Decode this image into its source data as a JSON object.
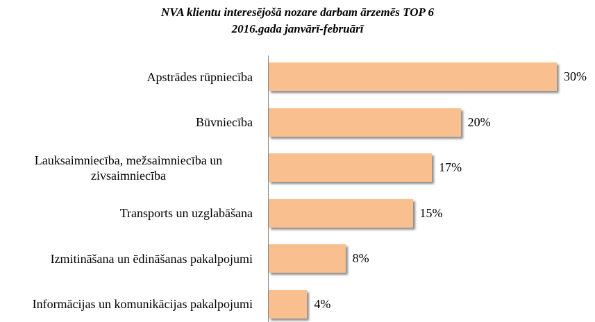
{
  "chart_data": {
    "type": "bar",
    "orientation": "horizontal",
    "title": "NVA klientu interesējošā nozare darbam ārzemēs TOP 6",
    "subtitle": "2016.gada janvārī-februārī",
    "categories": [
      "Apstrādes rūpniecība",
      "Būvniecība",
      "Lauksaimniecība, mežsaimniecība un zivsaimniecība",
      "Transports un uzglabāšana",
      "Izmitināšana un ēdināšanas pakalpojumi",
      "Informācijas un komunikācijas pakalpojumi"
    ],
    "values": [
      30,
      20,
      17,
      15,
      8,
      4
    ],
    "value_labels": [
      "30%",
      "20%",
      "17%",
      "15%",
      "8%",
      "4%"
    ],
    "color": "#f9bf8f"
  }
}
